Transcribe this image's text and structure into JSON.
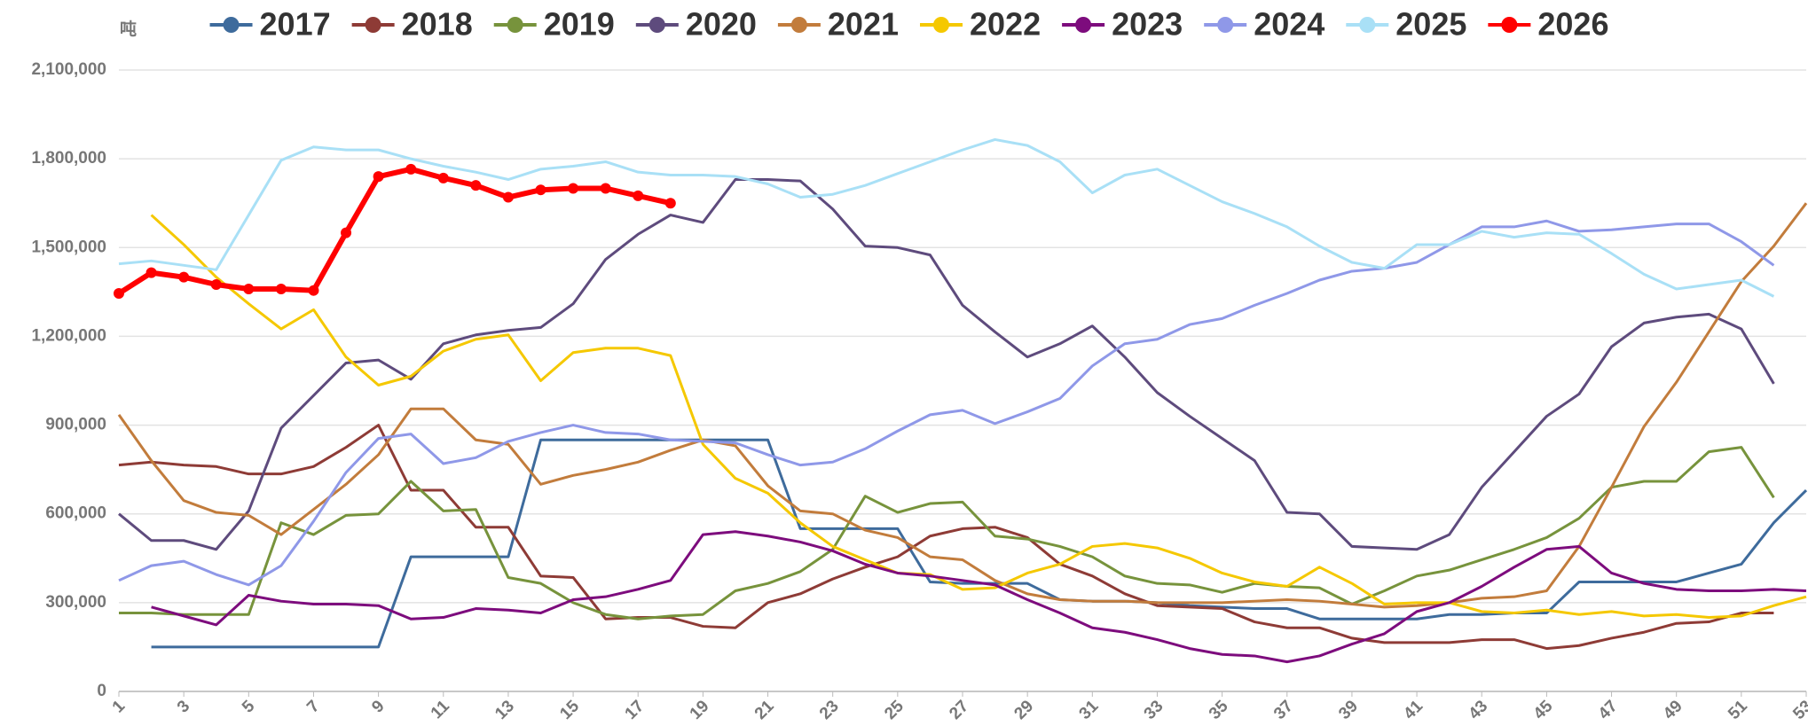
{
  "chart_data": {
    "type": "line",
    "y_label": "吨",
    "x": [
      1,
      2,
      3,
      4,
      5,
      6,
      7,
      8,
      9,
      10,
      11,
      12,
      13,
      14,
      15,
      16,
      17,
      18,
      19,
      20,
      21,
      22,
      23,
      24,
      25,
      26,
      27,
      28,
      29,
      30,
      31,
      32,
      33,
      34,
      35,
      36,
      37,
      38,
      39,
      40,
      41,
      42,
      43,
      44,
      45,
      46,
      47,
      48,
      49,
      50,
      51,
      52,
      53
    ],
    "xlim": [
      1,
      53
    ],
    "xticks": [
      1,
      3,
      5,
      7,
      9,
      11,
      13,
      15,
      17,
      19,
      21,
      23,
      25,
      27,
      29,
      31,
      33,
      35,
      37,
      39,
      41,
      43,
      45,
      47,
      49,
      51,
      53
    ],
    "ylim": [
      0,
      2100000
    ],
    "yticks": [
      0,
      {
        "value": 300000,
        "label": "300,000"
      },
      {
        "value": 600000,
        "label": "600,000"
      },
      {
        "value": 900000,
        "label": "900,000"
      },
      {
        "value": 1200000,
        "label": "1,200,000"
      },
      {
        "value": 1500000,
        "label": "1,500,000"
      },
      {
        "value": 1800000,
        "label": "1,800,000"
      },
      {
        "value": 2100000,
        "label": "2,100,000"
      }
    ],
    "grid": true,
    "legend": "top",
    "series": [
      {
        "name": "2017",
        "color": "#3e6b9c",
        "values": [
          null,
          150000,
          150000,
          150000,
          150000,
          150000,
          150000,
          150000,
          150000,
          455000,
          455000,
          455000,
          455000,
          850000,
          850000,
          850000,
          850000,
          850000,
          850000,
          850000,
          850000,
          550000,
          550000,
          550000,
          550000,
          370000,
          365000,
          365000,
          365000,
          310000,
          305000,
          305000,
          300000,
          290000,
          285000,
          280000,
          280000,
          245000,
          245000,
          245000,
          245000,
          260000,
          260000,
          265000,
          265000,
          370000,
          370000,
          370000,
          370000,
          400000,
          430000,
          570000,
          680000
        ]
      },
      {
        "name": "2018",
        "color": "#8e3b36",
        "values": [
          765000,
          775000,
          765000,
          760000,
          735000,
          735000,
          760000,
          825000,
          900000,
          680000,
          680000,
          555000,
          555000,
          390000,
          385000,
          245000,
          250000,
          250000,
          220000,
          215000,
          300000,
          330000,
          380000,
          420000,
          455000,
          525000,
          550000,
          555000,
          520000,
          430000,
          390000,
          330000,
          290000,
          285000,
          280000,
          235000,
          215000,
          215000,
          180000,
          165000,
          165000,
          165000,
          175000,
          175000,
          145000,
          155000,
          180000,
          200000,
          230000,
          235000,
          265000,
          265000,
          null
        ]
      },
      {
        "name": "2019",
        "color": "#77933c",
        "values": [
          265000,
          265000,
          260000,
          260000,
          260000,
          570000,
          530000,
          595000,
          600000,
          710000,
          610000,
          615000,
          385000,
          365000,
          300000,
          260000,
          245000,
          255000,
          260000,
          340000,
          365000,
          405000,
          480000,
          660000,
          605000,
          635000,
          640000,
          525000,
          515000,
          490000,
          455000,
          390000,
          365000,
          360000,
          335000,
          365000,
          355000,
          350000,
          295000,
          340000,
          390000,
          410000,
          445000,
          480000,
          520000,
          585000,
          690000,
          710000,
          710000,
          810000,
          825000,
          655000,
          null
        ]
      },
      {
        "name": "2020",
        "color": "#5e4b7d",
        "values": [
          600000,
          510000,
          510000,
          480000,
          610000,
          890000,
          1000000,
          1110000,
          1120000,
          1055000,
          1175000,
          1205000,
          1220000,
          1230000,
          1310000,
          1460000,
          1545000,
          1610000,
          1585000,
          1730000,
          1730000,
          1725000,
          1630000,
          1505000,
          1500000,
          1475000,
          1305000,
          1215000,
          1130000,
          1175000,
          1235000,
          1130000,
          1010000,
          930000,
          855000,
          780000,
          605000,
          600000,
          490000,
          485000,
          480000,
          530000,
          690000,
          810000,
          930000,
          1005000,
          1165000,
          1245000,
          1265000,
          1275000,
          1225000,
          1040000,
          null
        ]
      },
      {
        "name": "2021",
        "color": "#c27c3c",
        "values": [
          935000,
          780000,
          645000,
          605000,
          595000,
          530000,
          615000,
          700000,
          800000,
          955000,
          955000,
          850000,
          835000,
          700000,
          730000,
          750000,
          775000,
          815000,
          850000,
          830000,
          695000,
          610000,
          600000,
          545000,
          520000,
          455000,
          445000,
          375000,
          330000,
          310000,
          305000,
          305000,
          300000,
          300000,
          300000,
          305000,
          310000,
          305000,
          295000,
          285000,
          290000,
          300000,
          315000,
          320000,
          340000,
          490000,
          690000,
          895000,
          1045000,
          1215000,
          1385000,
          1505000,
          1650000
        ]
      },
      {
        "name": "2022",
        "color": "#f5c800",
        "values": [
          null,
          1610000,
          1510000,
          1400000,
          1310000,
          1225000,
          1290000,
          1130000,
          1035000,
          1065000,
          1150000,
          1190000,
          1205000,
          1050000,
          1145000,
          1160000,
          1160000,
          1135000,
          835000,
          720000,
          670000,
          570000,
          490000,
          445000,
          400000,
          395000,
          345000,
          350000,
          400000,
          430000,
          490000,
          500000,
          485000,
          450000,
          400000,
          370000,
          355000,
          420000,
          365000,
          295000,
          300000,
          300000,
          270000,
          265000,
          275000,
          260000,
          270000,
          255000,
          260000,
          250000,
          255000,
          290000,
          320000
        ]
      },
      {
        "name": "2023",
        "color": "#7d0c7d",
        "values": [
          null,
          285000,
          255000,
          225000,
          325000,
          305000,
          295000,
          295000,
          290000,
          245000,
          250000,
          280000,
          275000,
          265000,
          310000,
          320000,
          345000,
          375000,
          530000,
          540000,
          525000,
          505000,
          475000,
          430000,
          400000,
          390000,
          375000,
          360000,
          310000,
          265000,
          215000,
          200000,
          175000,
          145000,
          125000,
          120000,
          100000,
          120000,
          160000,
          195000,
          270000,
          300000,
          355000,
          420000,
          480000,
          490000,
          400000,
          365000,
          345000,
          340000,
          340000,
          345000,
          340000
        ]
      },
      {
        "name": "2024",
        "color": "#8f98e8",
        "values": [
          375000,
          425000,
          440000,
          395000,
          360000,
          425000,
          575000,
          740000,
          855000,
          870000,
          770000,
          790000,
          845000,
          875000,
          900000,
          875000,
          870000,
          850000,
          845000,
          840000,
          800000,
          765000,
          775000,
          820000,
          880000,
          935000,
          950000,
          905000,
          945000,
          990000,
          1100000,
          1175000,
          1190000,
          1240000,
          1260000,
          1305000,
          1345000,
          1390000,
          1420000,
          1430000,
          1450000,
          1510000,
          1570000,
          1570000,
          1590000,
          1555000,
          1560000,
          1570000,
          1580000,
          1580000,
          1520000,
          1440000,
          null
        ]
      },
      {
        "name": "2025",
        "color": "#a9e0f6",
        "values": [
          1445000,
          1455000,
          1440000,
          1425000,
          1610000,
          1795000,
          1840000,
          1830000,
          1830000,
          1800000,
          1775000,
          1755000,
          1730000,
          1765000,
          1775000,
          1790000,
          1755000,
          1745000,
          1745000,
          1740000,
          1715000,
          1670000,
          1680000,
          1710000,
          1750000,
          1790000,
          1830000,
          1865000,
          1845000,
          1790000,
          1685000,
          1745000,
          1765000,
          1710000,
          1655000,
          1615000,
          1570000,
          1505000,
          1450000,
          1430000,
          1510000,
          1510000,
          1555000,
          1535000,
          1550000,
          1545000,
          1480000,
          1410000,
          1360000,
          1375000,
          1390000,
          1335000,
          null
        ]
      },
      {
        "name": "2026",
        "color": "#ff0000",
        "markers": true,
        "values": [
          1345000,
          1415000,
          1400000,
          1375000,
          1360000,
          1360000,
          1355000,
          1550000,
          1740000,
          1765000,
          1735000,
          1710000,
          1670000,
          1695000,
          1700000,
          1700000,
          1675000,
          1650000,
          null,
          null,
          null,
          null,
          null,
          null,
          null,
          null,
          null,
          null,
          null,
          null,
          null,
          null,
          null,
          null,
          null,
          null,
          null,
          null,
          null,
          null,
          null,
          null,
          null,
          null,
          null,
          null,
          null,
          null,
          null,
          null,
          null,
          null,
          null
        ]
      }
    ]
  }
}
